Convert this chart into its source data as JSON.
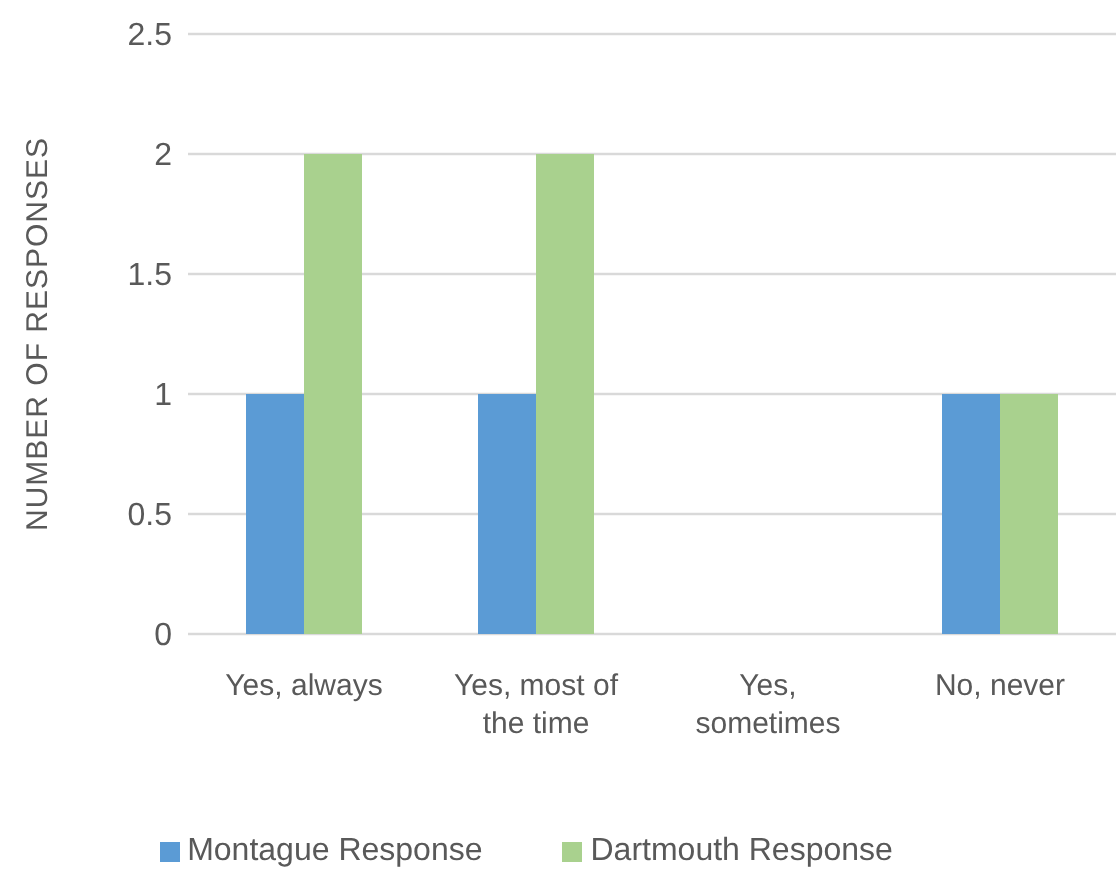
{
  "chart_data": {
    "type": "bar",
    "ylabel": "NUMBER OF RESPONSES",
    "categories": [
      "Yes, always",
      "Yes, most of the time",
      "Yes, sometimes",
      "No, never"
    ],
    "series": [
      {
        "name": "Montague Response",
        "color": "#5b9bd5",
        "values": [
          1,
          1,
          0,
          1
        ]
      },
      {
        "name": "Dartmouth Response",
        "color": "#a9d18e",
        "values": [
          2,
          2,
          0,
          1
        ]
      }
    ],
    "ylim": [
      0,
      2.5
    ],
    "yticks": [
      0,
      0.5,
      1,
      1.5,
      2,
      2.5
    ],
    "grid": "y",
    "legend": "bottom"
  }
}
